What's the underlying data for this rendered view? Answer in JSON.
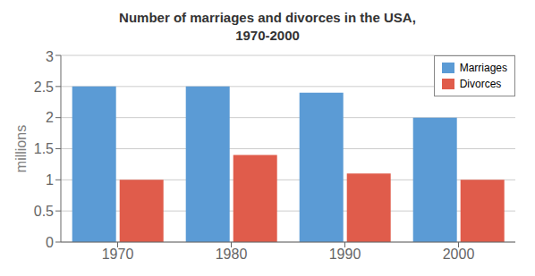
{
  "chart_data": {
    "type": "bar",
    "title": "Number of marriages and divorces in the USA,\n1970-2000",
    "categories": [
      "1970",
      "1980",
      "1990",
      "2000"
    ],
    "series": [
      {
        "name": "Marriages",
        "color": "#5B9BD5",
        "values": [
          2.5,
          2.5,
          2.4,
          2.0
        ]
      },
      {
        "name": "Divorces",
        "color": "#E05C4B",
        "values": [
          1.0,
          1.4,
          1.1,
          1.0
        ]
      }
    ],
    "ylabel": "millions",
    "ylim": [
      0,
      3.0
    ],
    "yticks": [
      0,
      0.5,
      1,
      1.5,
      2,
      2.5,
      3
    ],
    "grid": true,
    "legend": "upper right"
  }
}
